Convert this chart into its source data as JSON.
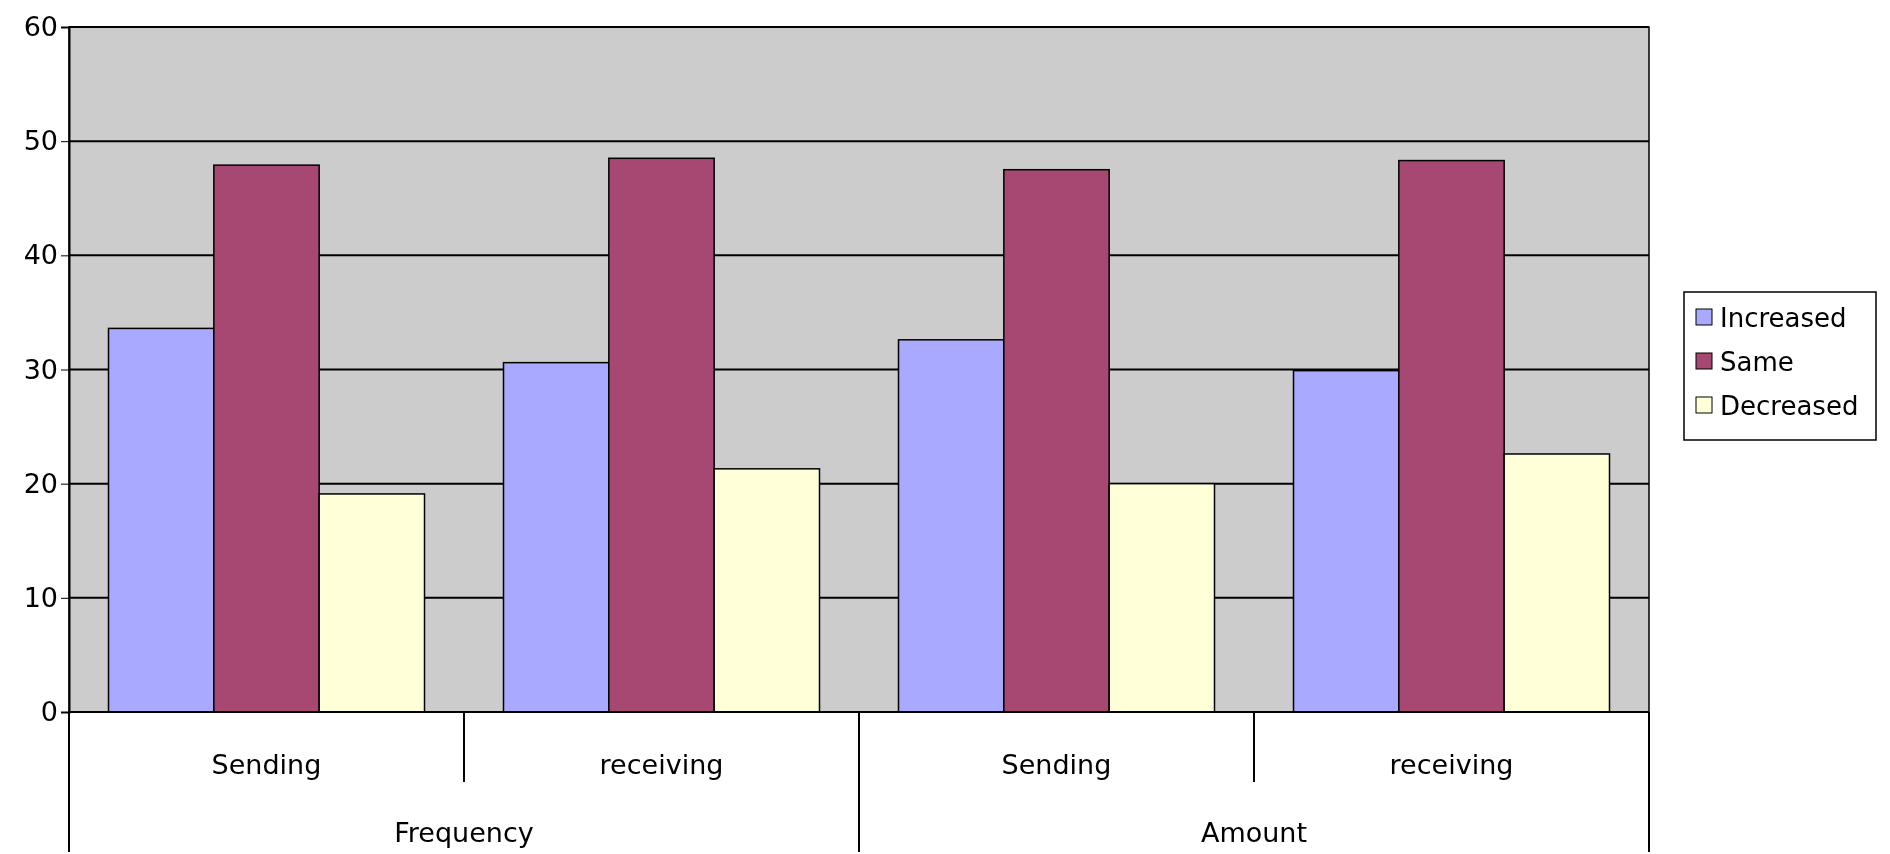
{
  "chart_data": {
    "type": "bar",
    "categories": [
      "Sending",
      "receiving",
      "Sending",
      "receiving"
    ],
    "series": [
      {
        "name": "Increased",
        "color": "#a9a9ff",
        "values": [
          33.6,
          30.6,
          32.6,
          29.9
        ]
      },
      {
        "name": "Same",
        "color": "#a64872",
        "values": [
          47.9,
          48.5,
          47.5,
          48.3
        ]
      },
      {
        "name": "Decreased",
        "color": "#ffffd8",
        "values": [
          19.1,
          21.3,
          20.0,
          22.6
        ]
      }
    ],
    "ylim": [
      0,
      60
    ],
    "yticks": [
      0,
      10,
      20,
      30,
      40,
      50,
      60
    ],
    "grid": "y",
    "legend": "right",
    "annotations": [
      "Frequency",
      "Amount"
    ]
  }
}
